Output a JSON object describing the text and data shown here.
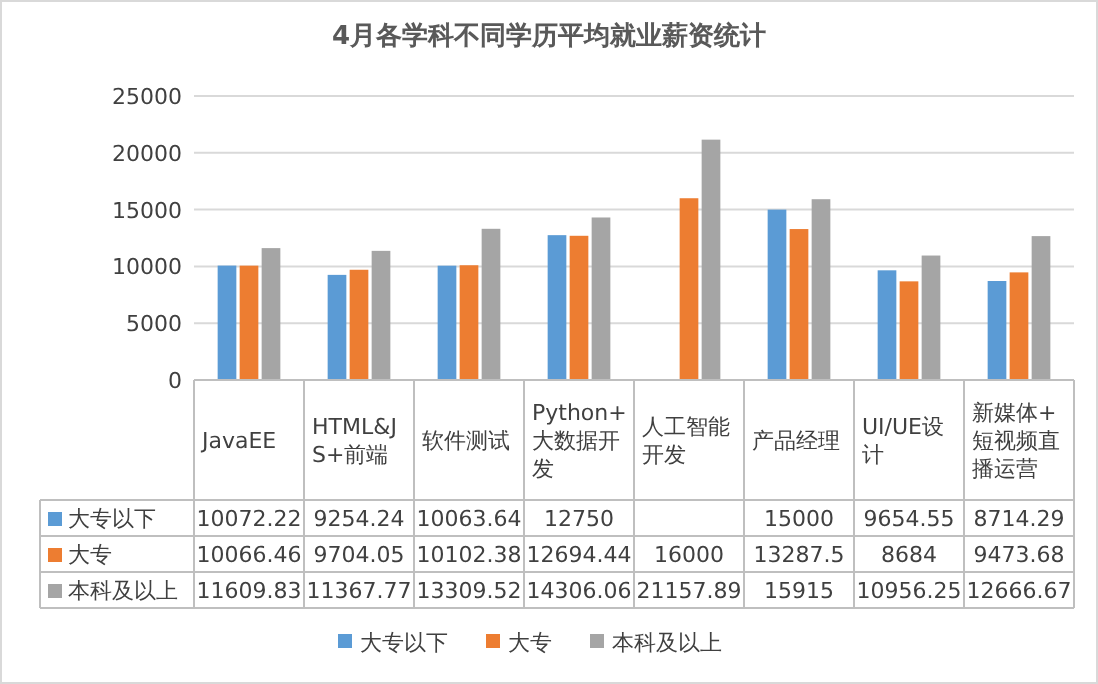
{
  "chart_data": {
    "type": "bar",
    "title": "4月各学科不同学历平均就业薪资统计",
    "categories": [
      "JavaEE",
      "HTML&JS+前端",
      "软件测试",
      "Python+大数据开发",
      "人工智能开发",
      "产品经理",
      "UI/UE设计",
      "新媒体+短视频直播运营"
    ],
    "series": [
      {
        "name": "大专以下",
        "color": "#5b9bd5",
        "values": [
          10072.22,
          9254.24,
          10063.64,
          12750,
          null,
          15000,
          9654.55,
          8714.29
        ]
      },
      {
        "name": "大专",
        "color": "#ed7d31",
        "values": [
          10066.46,
          9704.05,
          10102.38,
          12694.44,
          16000,
          13287.5,
          8684,
          9473.68
        ]
      },
      {
        "name": "本科及以上",
        "color": "#a5a5a5",
        "values": [
          11609.83,
          11367.77,
          13309.52,
          14306.06,
          21157.89,
          15915,
          10956.25,
          12666.67
        ]
      }
    ],
    "ylim": [
      0,
      25000
    ],
    "yticks": [
      0,
      5000,
      10000,
      15000,
      20000,
      25000
    ],
    "grid": "y",
    "legend": "bottom",
    "data_labels": true
  }
}
